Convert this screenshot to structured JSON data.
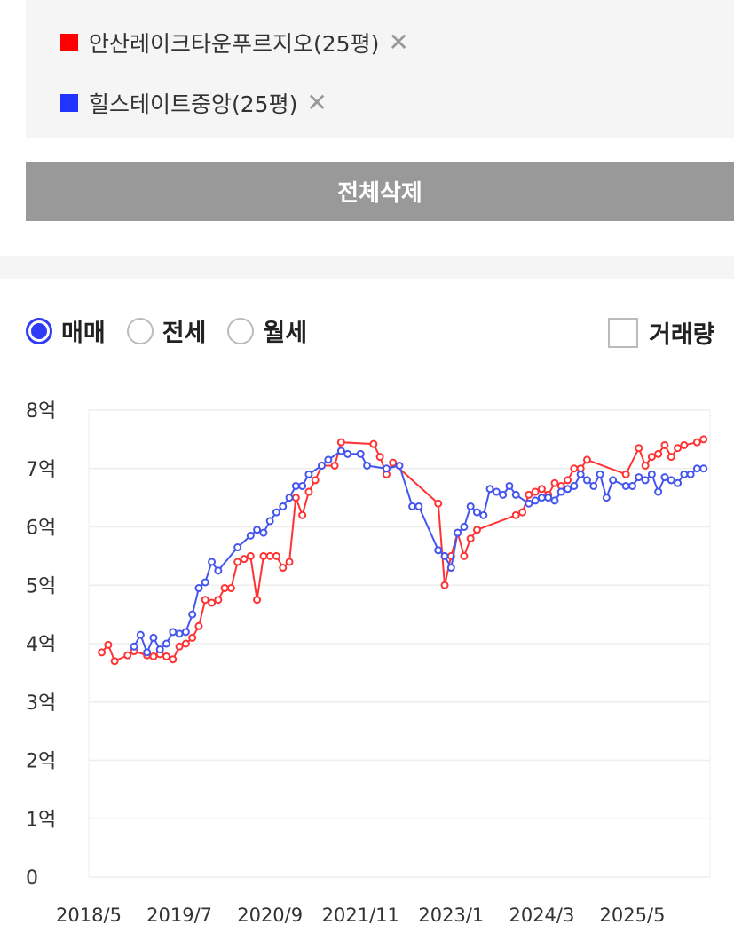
{
  "compare_list": {
    "items": [
      {
        "label": "안산레이크타운푸르지오(25평)",
        "color": "#ff0000",
        "close": "✕"
      },
      {
        "label": "힐스테이트중앙(25평)",
        "color": "#2233ff",
        "close": "✕"
      }
    ],
    "delete_all_label": "전체삭제"
  },
  "filters": {
    "options": [
      {
        "label": "매매",
        "checked": true
      },
      {
        "label": "전세",
        "checked": false
      },
      {
        "label": "월세",
        "checked": false
      }
    ],
    "volume_label": "거래량"
  },
  "chart_data": {
    "type": "line",
    "ylim": [
      0,
      8
    ],
    "y_ticks": [
      {
        "value": 0,
        "label": "0"
      },
      {
        "value": 1,
        "label": "1억"
      },
      {
        "value": 2,
        "label": "2억"
      },
      {
        "value": 3,
        "label": "3억"
      },
      {
        "value": 4,
        "label": "4억"
      },
      {
        "value": 5,
        "label": "5억"
      },
      {
        "value": 6,
        "label": "6억"
      },
      {
        "value": 7,
        "label": "7억"
      },
      {
        "value": 8,
        "label": "8억"
      }
    ],
    "x_ticks": [
      "2018/5",
      "2019/7",
      "2020/9",
      "2021/11",
      "2023/1",
      "2024/3",
      "2025/5"
    ],
    "xlim": [
      "2018/5",
      "2026/5"
    ],
    "grid": true,
    "series": [
      {
        "name": "안산레이크타운푸르지오(25평)",
        "color": "#ff3333",
        "points": [
          [
            "2018/7",
            3.85
          ],
          [
            "2018/8",
            3.98
          ],
          [
            "2018/9",
            3.7
          ],
          [
            "2018/11",
            3.8
          ],
          [
            "2018/12",
            3.87
          ],
          [
            "2019/2",
            3.8
          ],
          [
            "2019/3",
            3.78
          ],
          [
            "2019/4",
            3.82
          ],
          [
            "2019/5",
            3.78
          ],
          [
            "2019/6",
            3.73
          ],
          [
            "2019/7",
            3.95
          ],
          [
            "2019/8",
            4.0
          ],
          [
            "2019/9",
            4.1
          ],
          [
            "2019/10",
            4.3
          ],
          [
            "2019/11",
            4.75
          ],
          [
            "2019/12",
            4.7
          ],
          [
            "2020/1",
            4.75
          ],
          [
            "2020/2",
            4.95
          ],
          [
            "2020/3",
            4.95
          ],
          [
            "2020/4",
            5.4
          ],
          [
            "2020/5",
            5.45
          ],
          [
            "2020/6",
            5.5
          ],
          [
            "2020/7",
            4.75
          ],
          [
            "2020/8",
            5.5
          ],
          [
            "2020/9",
            5.5
          ],
          [
            "2020/10",
            5.5
          ],
          [
            "2020/11",
            5.3
          ],
          [
            "2020/12",
            5.4
          ],
          [
            "2021/1",
            6.5
          ],
          [
            "2021/2",
            6.2
          ],
          [
            "2021/3",
            6.6
          ],
          [
            "2021/4",
            6.8
          ],
          [
            "2021/5",
            7.05
          ],
          [
            "2021/7",
            7.05
          ],
          [
            "2021/8",
            7.45
          ],
          [
            "2022/1",
            7.42
          ],
          [
            "2022/2",
            7.2
          ],
          [
            "2022/3",
            6.9
          ],
          [
            "2022/4",
            7.1
          ],
          [
            "2022/11",
            6.4
          ],
          [
            "2022/12",
            5.0
          ],
          [
            "2023/1",
            5.5
          ],
          [
            "2023/2",
            5.9
          ],
          [
            "2023/3",
            5.5
          ],
          [
            "2023/4",
            5.8
          ],
          [
            "2023/5",
            5.95
          ],
          [
            "2023/11",
            6.2
          ],
          [
            "2023/12",
            6.25
          ],
          [
            "2024/1",
            6.55
          ],
          [
            "2024/2",
            6.6
          ],
          [
            "2024/3",
            6.65
          ],
          [
            "2024/4",
            6.55
          ],
          [
            "2024/5",
            6.75
          ],
          [
            "2024/6",
            6.7
          ],
          [
            "2024/7",
            6.8
          ],
          [
            "2024/8",
            7.0
          ],
          [
            "2024/9",
            7.0
          ],
          [
            "2024/10",
            7.15
          ],
          [
            "2025/4",
            6.9
          ],
          [
            "2025/6",
            7.35
          ],
          [
            "2025/7",
            7.05
          ],
          [
            "2025/8",
            7.2
          ],
          [
            "2025/9",
            7.25
          ],
          [
            "2025/10",
            7.4
          ],
          [
            "2025/11",
            7.2
          ],
          [
            "2025/12",
            7.35
          ],
          [
            "2026/1",
            7.4
          ],
          [
            "2026/3",
            7.45
          ],
          [
            "2026/4",
            7.5
          ]
        ]
      },
      {
        "name": "힐스테이트중앙(25평)",
        "color": "#4455ee",
        "points": [
          [
            "2018/12",
            3.95
          ],
          [
            "2019/1",
            4.15
          ],
          [
            "2019/2",
            3.85
          ],
          [
            "2019/3",
            4.1
          ],
          [
            "2019/4",
            3.9
          ],
          [
            "2019/5",
            4.0
          ],
          [
            "2019/6",
            4.2
          ],
          [
            "2019/7",
            4.17
          ],
          [
            "2019/8",
            4.2
          ],
          [
            "2019/9",
            4.5
          ],
          [
            "2019/10",
            4.95
          ],
          [
            "2019/11",
            5.05
          ],
          [
            "2019/12",
            5.4
          ],
          [
            "2020/1",
            5.25
          ],
          [
            "2020/4",
            5.65
          ],
          [
            "2020/6",
            5.85
          ],
          [
            "2020/7",
            5.95
          ],
          [
            "2020/8",
            5.9
          ],
          [
            "2020/9",
            6.1
          ],
          [
            "2020/10",
            6.25
          ],
          [
            "2020/11",
            6.35
          ],
          [
            "2020/12",
            6.5
          ],
          [
            "2021/1",
            6.7
          ],
          [
            "2021/2",
            6.7
          ],
          [
            "2021/3",
            6.9
          ],
          [
            "2021/5",
            7.05
          ],
          [
            "2021/6",
            7.15
          ],
          [
            "2021/8",
            7.3
          ],
          [
            "2021/9",
            7.25
          ],
          [
            "2021/11",
            7.25
          ],
          [
            "2021/12",
            7.05
          ],
          [
            "2022/3",
            7.0
          ],
          [
            "2022/5",
            7.05
          ],
          [
            "2022/7",
            6.35
          ],
          [
            "2022/8",
            6.35
          ],
          [
            "2022/11",
            5.6
          ],
          [
            "2022/12",
            5.5
          ],
          [
            "2023/1",
            5.3
          ],
          [
            "2023/2",
            5.9
          ],
          [
            "2023/3",
            6.0
          ],
          [
            "2023/4",
            6.35
          ],
          [
            "2023/5",
            6.25
          ],
          [
            "2023/6",
            6.2
          ],
          [
            "2023/7",
            6.65
          ],
          [
            "2023/8",
            6.6
          ],
          [
            "2023/9",
            6.55
          ],
          [
            "2023/10",
            6.7
          ],
          [
            "2023/11",
            6.55
          ],
          [
            "2024/1",
            6.4
          ],
          [
            "2024/2",
            6.45
          ],
          [
            "2024/3",
            6.5
          ],
          [
            "2024/4",
            6.5
          ],
          [
            "2024/5",
            6.45
          ],
          [
            "2024/6",
            6.6
          ],
          [
            "2024/7",
            6.65
          ],
          [
            "2024/8",
            6.7
          ],
          [
            "2024/9",
            6.9
          ],
          [
            "2024/10",
            6.8
          ],
          [
            "2024/11",
            6.7
          ],
          [
            "2024/12",
            6.9
          ],
          [
            "2025/1",
            6.5
          ],
          [
            "2025/2",
            6.8
          ],
          [
            "2025/4",
            6.7
          ],
          [
            "2025/5",
            6.7
          ],
          [
            "2025/6",
            6.85
          ],
          [
            "2025/7",
            6.8
          ],
          [
            "2025/8",
            6.9
          ],
          [
            "2025/9",
            6.6
          ],
          [
            "2025/10",
            6.85
          ],
          [
            "2025/11",
            6.8
          ],
          [
            "2025/12",
            6.75
          ],
          [
            "2026/1",
            6.9
          ],
          [
            "2026/2",
            6.9
          ],
          [
            "2026/3",
            7.0
          ],
          [
            "2026/4",
            7.0
          ]
        ]
      }
    ]
  }
}
